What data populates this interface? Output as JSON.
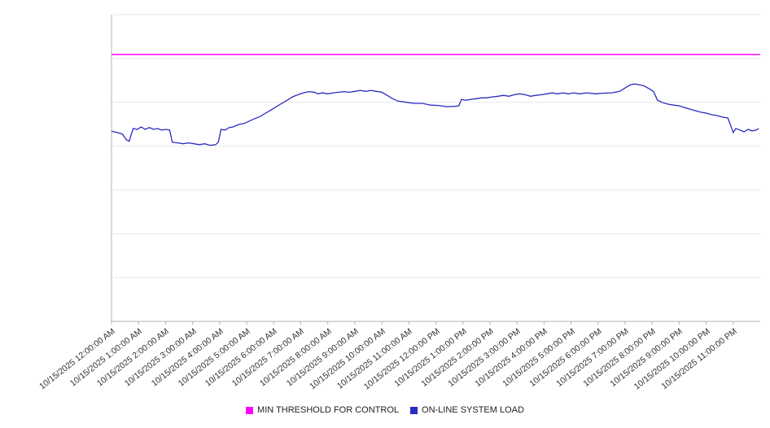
{
  "chart_data": {
    "type": "line",
    "title": "",
    "xlabel": "",
    "ylabel": "",
    "y_axis_tick_labels_visible": false,
    "ylim": [
      0,
      100
    ],
    "x_range_hours": [
      0,
      24
    ],
    "grid": {
      "horizontal_lines": 8,
      "color": "#e8e8e8"
    },
    "axis_color": "#b3b3b3",
    "legend_position": "bottom-center",
    "x_labels": [
      "10/15/2025 12:00:00 AM",
      "10/15/2025 1:00:00 AM",
      "10/15/2025 2:00:00 AM",
      "10/15/2025 3:00:00 AM",
      "10/15/2025 4:00:00 AM",
      "10/15/2025 5:00:00 AM",
      "10/15/2025 6:00:00 AM",
      "10/15/2025 7:00:00 AM",
      "10/15/2025 8:00:00 AM",
      "10/15/2025 9:00:00 AM",
      "10/15/2025 10:00:00 AM",
      "10/15/2025 11:00:00 AM",
      "10/15/2025 12:00:00 PM",
      "10/15/2025 1:00:00 PM",
      "10/15/2025 2:00:00 PM",
      "10/15/2025 3:00:00 PM",
      "10/15/2025 4:00:00 PM",
      "10/15/2025 5:00:00 PM",
      "10/15/2025 6:00:00 PM",
      "10/15/2025 7:00:00 PM",
      "10/15/2025 8:00:00 PM",
      "10/15/2025 9:00:00 PM",
      "10/15/2025 10:00:00 PM",
      "10/15/2025 11:00:00 PM"
    ],
    "series": [
      {
        "name": "MIN THRESHOLD FOR CONTROL",
        "type": "threshold-line",
        "color": "#ff00ff",
        "value": 87
      },
      {
        "name": "ON-LINE SYSTEM LOAD",
        "type": "line",
        "color": "#2a2ac0",
        "points": [
          [
            0,
            62
          ],
          [
            0.2,
            61.6
          ],
          [
            0.4,
            61.1
          ],
          [
            0.55,
            59.2
          ],
          [
            0.65,
            58.7
          ],
          [
            0.8,
            62.9
          ],
          [
            0.95,
            62.6
          ],
          [
            1.1,
            63.4
          ],
          [
            1.25,
            62.6
          ],
          [
            1.4,
            63.2
          ],
          [
            1.55,
            62.6
          ],
          [
            1.7,
            62.9
          ],
          [
            1.85,
            62.4
          ],
          [
            2.0,
            62.6
          ],
          [
            2.15,
            62.4
          ],
          [
            2.25,
            58.4
          ],
          [
            2.45,
            58.2
          ],
          [
            2.65,
            57.9
          ],
          [
            2.85,
            58.2
          ],
          [
            3.05,
            57.9
          ],
          [
            3.25,
            57.6
          ],
          [
            3.45,
            57.9
          ],
          [
            3.65,
            57.4
          ],
          [
            3.85,
            57.6
          ],
          [
            3.95,
            58.4
          ],
          [
            4.05,
            62.6
          ],
          [
            4.2,
            62.4
          ],
          [
            4.35,
            63.2
          ],
          [
            4.5,
            63.4
          ],
          [
            4.7,
            64.2
          ],
          [
            4.9,
            64.5
          ],
          [
            5.1,
            65.3
          ],
          [
            5.3,
            66.1
          ],
          [
            5.5,
            66.8
          ],
          [
            5.7,
            67.9
          ],
          [
            5.9,
            68.9
          ],
          [
            6.1,
            70
          ],
          [
            6.3,
            71.1
          ],
          [
            6.5,
            72.1
          ],
          [
            6.7,
            73.2
          ],
          [
            6.9,
            73.9
          ],
          [
            7.1,
            74.5
          ],
          [
            7.3,
            74.9
          ],
          [
            7.5,
            74.7
          ],
          [
            7.65,
            74.2
          ],
          [
            7.8,
            74.5
          ],
          [
            8.0,
            74.2
          ],
          [
            8.2,
            74.5
          ],
          [
            8.4,
            74.7
          ],
          [
            8.6,
            74.9
          ],
          [
            8.8,
            74.7
          ],
          [
            9.0,
            75.0
          ],
          [
            9.2,
            75.3
          ],
          [
            9.4,
            75.0
          ],
          [
            9.6,
            75.3
          ],
          [
            9.8,
            75.0
          ],
          [
            10.0,
            74.7
          ],
          [
            10.2,
            73.7
          ],
          [
            10.4,
            72.6
          ],
          [
            10.6,
            71.8
          ],
          [
            10.8,
            71.6
          ],
          [
            11.0,
            71.3
          ],
          [
            11.2,
            71.1
          ],
          [
            11.5,
            71.1
          ],
          [
            11.8,
            70.5
          ],
          [
            12.1,
            70.4
          ],
          [
            12.4,
            70.0
          ],
          [
            12.7,
            70.1
          ],
          [
            12.85,
            70.3
          ],
          [
            12.95,
            72.4
          ],
          [
            13.1,
            72.1
          ],
          [
            13.3,
            72.4
          ],
          [
            13.5,
            72.6
          ],
          [
            13.7,
            72.9
          ],
          [
            13.9,
            72.9
          ],
          [
            14.1,
            73.2
          ],
          [
            14.3,
            73.4
          ],
          [
            14.5,
            73.7
          ],
          [
            14.7,
            73.4
          ],
          [
            14.9,
            73.9
          ],
          [
            15.1,
            74.2
          ],
          [
            15.3,
            73.9
          ],
          [
            15.5,
            73.4
          ],
          [
            15.7,
            73.7
          ],
          [
            15.9,
            73.9
          ],
          [
            16.1,
            74.2
          ],
          [
            16.3,
            74.5
          ],
          [
            16.5,
            74.2
          ],
          [
            16.7,
            74.5
          ],
          [
            16.9,
            74.2
          ],
          [
            17.1,
            74.5
          ],
          [
            17.3,
            74.2
          ],
          [
            17.6,
            74.5
          ],
          [
            17.9,
            74.2
          ],
          [
            18.2,
            74.4
          ],
          [
            18.5,
            74.5
          ],
          [
            18.8,
            75.0
          ],
          [
            19.0,
            76.1
          ],
          [
            19.2,
            77.1
          ],
          [
            19.35,
            77.4
          ],
          [
            19.5,
            77.2
          ],
          [
            19.7,
            76.8
          ],
          [
            19.9,
            75.8
          ],
          [
            20.05,
            75.0
          ],
          [
            20.2,
            72.1
          ],
          [
            20.4,
            71.3
          ],
          [
            20.6,
            70.8
          ],
          [
            20.8,
            70.5
          ],
          [
            21.0,
            70.3
          ],
          [
            21.2,
            69.7
          ],
          [
            21.4,
            69.2
          ],
          [
            21.6,
            68.7
          ],
          [
            21.8,
            68.2
          ],
          [
            22.0,
            67.9
          ],
          [
            22.2,
            67.4
          ],
          [
            22.4,
            67.1
          ],
          [
            22.6,
            66.6
          ],
          [
            22.8,
            66.3
          ],
          [
            22.9,
            64.0
          ],
          [
            23.0,
            61.6
          ],
          [
            23.1,
            62.9
          ],
          [
            23.25,
            62.4
          ],
          [
            23.4,
            61.8
          ],
          [
            23.55,
            62.6
          ],
          [
            23.7,
            62.1
          ],
          [
            23.85,
            62.4
          ],
          [
            23.95,
            62.9
          ]
        ]
      }
    ]
  }
}
